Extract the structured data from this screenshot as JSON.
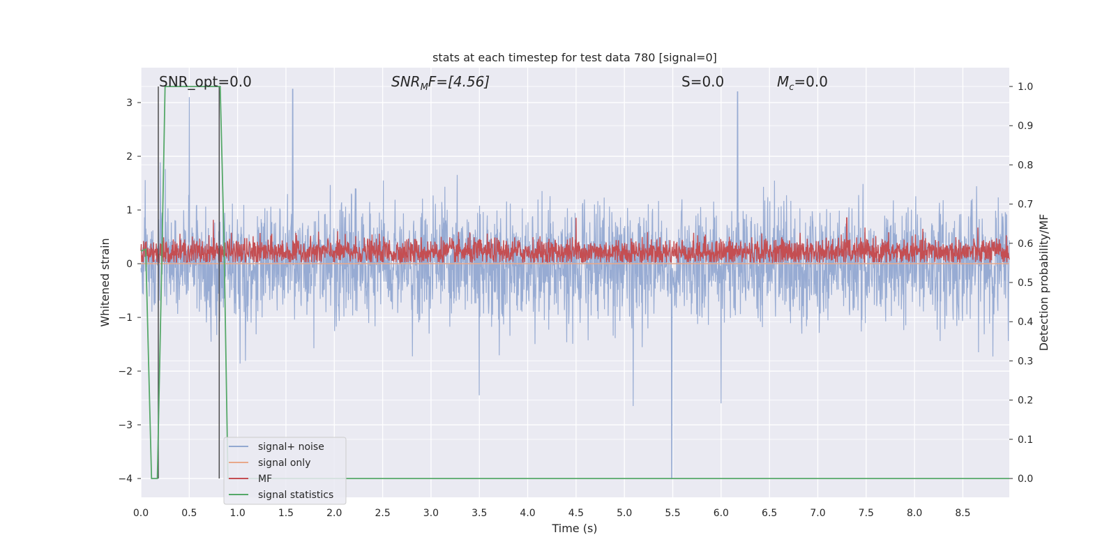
{
  "chart_data": {
    "type": "line",
    "title": "stats at each timestep for test data 780 [signal=0]",
    "xlabel": "Time (s)",
    "ylabel_left": "Whitened strain",
    "ylabel_right": "Detection probability/MF",
    "xlim": [
      0.0,
      8.98
    ],
    "ylim_left": [
      -4.35,
      3.65
    ],
    "ylim_right": [
      -0.048,
      1.048
    ],
    "x_ticks": [
      "0.0",
      "0.5",
      "1.0",
      "1.5",
      "2.0",
      "2.5",
      "3.0",
      "3.5",
      "4.0",
      "4.5",
      "5.0",
      "5.5",
      "6.0",
      "6.5",
      "7.0",
      "7.5",
      "8.0",
      "8.5"
    ],
    "y_ticks_left": [
      "3",
      "2",
      "1",
      "0",
      "−1",
      "−2",
      "−3",
      "−4"
    ],
    "y_ticks_right": [
      "1.0",
      "0.9",
      "0.8",
      "0.7",
      "0.6",
      "0.5",
      "0.4",
      "0.3",
      "0.2",
      "0.1",
      "0.0"
    ],
    "grid": true,
    "legend_position": "lower-left",
    "annotations": {
      "snr_opt": "SNR_opt=0.0",
      "snr_mf_base": "SNR",
      "snr_mf_sub": "M",
      "snr_mf_rest": "F=[4.56]",
      "s": "S=0.0",
      "mc_base": "M",
      "mc_sub": "c",
      "mc_rest": "=0.0"
    },
    "series": [
      {
        "name": "signal+ noise",
        "color": "#92a8d1",
        "axis": "left",
        "description_values": {
          "baseline": 0.0,
          "typical_range": [
            -1.5,
            1.5
          ],
          "peaks": [
            [
              0.5,
              3.1
            ],
            [
              1.57,
              3.25
            ],
            [
              6.17,
              3.2
            ],
            [
              5.49,
              -4.0
            ],
            [
              5.09,
              -2.65
            ],
            [
              6.0,
              -2.6
            ],
            [
              3.5,
              -2.45
            ]
          ]
        }
      },
      {
        "name": "signal only",
        "color": "#e8a88a",
        "axis": "left",
        "x": [
          0.0,
          8.98
        ],
        "y": [
          0.0,
          0.0
        ]
      },
      {
        "name": "MF",
        "color": "#c44e52",
        "axis": "right",
        "description_values": {
          "typical_range": [
            0.555,
            0.6
          ],
          "peaks": [
            [
              0.75,
              0.66
            ],
            [
              4.5,
              0.665
            ],
            [
              7.3,
              0.665
            ]
          ]
        }
      },
      {
        "name": "signal statistics",
        "color": "#55a868",
        "axis": "right",
        "x": [
          0.0,
          0.05,
          0.11,
          0.17,
          0.22,
          0.25,
          0.82,
          0.86,
          0.9,
          8.98
        ],
        "y": [
          0.58,
          0.585,
          0.0,
          0.0,
          0.6,
          1.0,
          1.0,
          0.6,
          0.0,
          0.0
        ]
      }
    ],
    "vertical_markers": [
      {
        "x": 0.18,
        "y_from": 0.0,
        "y_to": 1.0,
        "color": "#4c4c4c"
      },
      {
        "x": 0.81,
        "y_from": 0.0,
        "y_to": 1.0,
        "color": "#4c4c4c"
      }
    ]
  }
}
